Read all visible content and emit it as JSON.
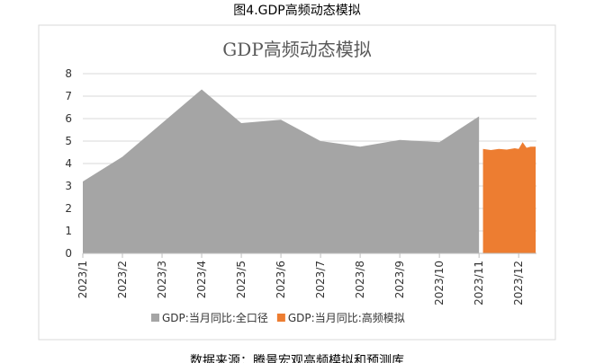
{
  "caption": "图4.GDP高频动态模拟",
  "source": "数据来源：腾景宏观高频模拟和预测库",
  "chart_data": {
    "type": "area",
    "title": "GDP高频动态模拟",
    "xlim": [
      1,
      12.45
    ],
    "xticks": [
      {
        "value": 1,
        "label": "2023/1"
      },
      {
        "value": 2,
        "label": "2023/2"
      },
      {
        "value": 3,
        "label": "2023/3"
      },
      {
        "value": 4,
        "label": "2023/4"
      },
      {
        "value": 5,
        "label": "2023/5"
      },
      {
        "value": 6,
        "label": "2023/6"
      },
      {
        "value": 7,
        "label": "2023/7"
      },
      {
        "value": 8,
        "label": "2023/8"
      },
      {
        "value": 9,
        "label": "2023/9"
      },
      {
        "value": 10,
        "label": "2023/10"
      },
      {
        "value": 11,
        "label": "2023/11"
      },
      {
        "value": 12,
        "label": "2023/12"
      }
    ],
    "ylim": [
      0,
      8
    ],
    "yticks": [
      0,
      1,
      2,
      3,
      4,
      5,
      6,
      7,
      8
    ],
    "grid": true,
    "legend": "bottom",
    "series": [
      {
        "name": "GDP:当月同比:全口径",
        "color": "#a5a5a5",
        "x": [
          1,
          2,
          3,
          4,
          5,
          6,
          7,
          8,
          9,
          10,
          11
        ],
        "values": [
          3.2,
          4.3,
          5.8,
          7.3,
          5.8,
          5.95,
          5.0,
          4.75,
          5.05,
          4.95,
          6.1
        ]
      },
      {
        "name": "GDP:当月同比:高频模拟",
        "color": "#ed7d31",
        "x": [
          11.1,
          11.3,
          11.5,
          11.7,
          11.9,
          12.0,
          12.1,
          12.2,
          12.3,
          12.43
        ],
        "values": [
          4.65,
          4.6,
          4.65,
          4.62,
          4.68,
          4.65,
          4.95,
          4.7,
          4.75,
          4.75
        ]
      }
    ]
  }
}
